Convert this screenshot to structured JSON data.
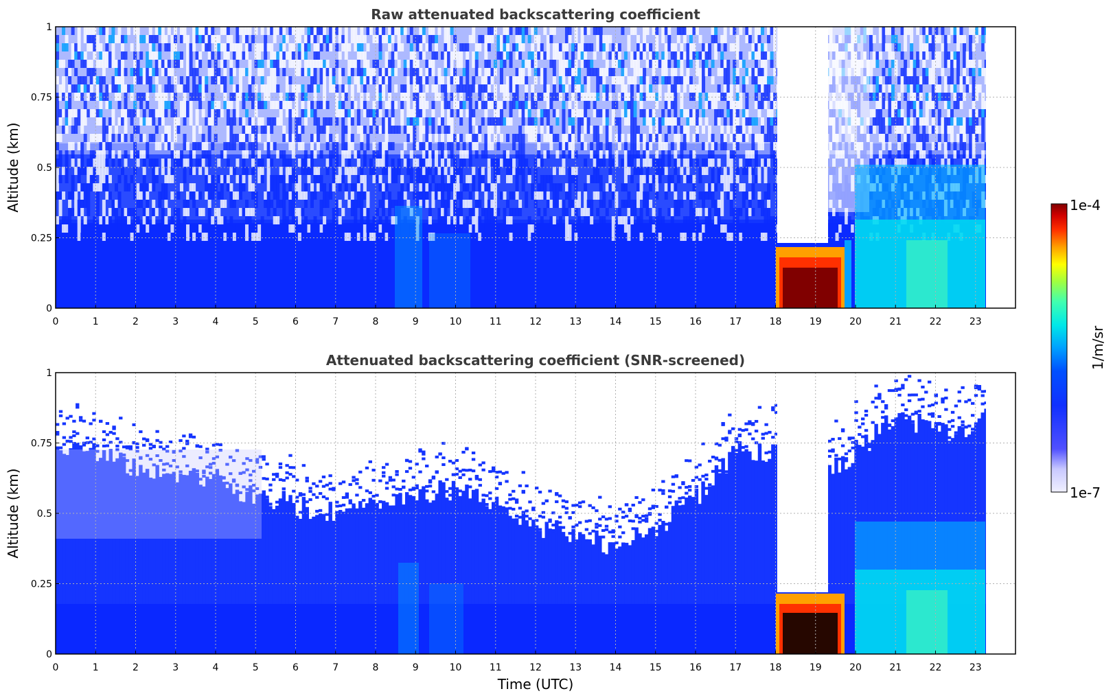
{
  "chart_data": [
    {
      "type": "heatmap",
      "title": "Raw attenuated backscattering coefficient",
      "xlabel": "",
      "ylabel": "Altitude (km)",
      "xlim": [
        0,
        24
      ],
      "ylim": [
        0,
        1
      ],
      "xticks": [
        "0",
        "1",
        "2",
        "3",
        "4",
        "5",
        "6",
        "7",
        "8",
        "9",
        "10",
        "11",
        "12",
        "13",
        "14",
        "15",
        "16",
        "17",
        "18",
        "19",
        "20",
        "21",
        "22",
        "23"
      ],
      "yticks": [
        "0",
        "0.25",
        "0.5",
        "0.75",
        "1"
      ],
      "grid": true,
      "data_end_hour": 23.3,
      "features": [
        {
          "hours": [
            18.0,
            19.7
          ],
          "altitude_km": [
            0.0,
            0.2
          ],
          "level": "high (~1e-4)"
        },
        {
          "hours": [
            18.0,
            19.2
          ],
          "altitude_km": [
            0.2,
            1.0
          ],
          "level": "none (blank)"
        },
        {
          "hours": [
            20.0,
            23.3
          ],
          "altitude_km": [
            0.0,
            0.35
          ],
          "level": "moderate (~1e-5)"
        }
      ]
    },
    {
      "type": "heatmap",
      "title": "Attenuated backscattering coefficient (SNR-screened)",
      "xlabel": "Time (UTC)",
      "ylabel": "Altitude (km)",
      "xlim": [
        0,
        24
      ],
      "ylim": [
        0,
        1
      ],
      "xticks": [
        "0",
        "1",
        "2",
        "3",
        "4",
        "5",
        "6",
        "7",
        "8",
        "9",
        "10",
        "11",
        "12",
        "13",
        "14",
        "15",
        "16",
        "17",
        "18",
        "19",
        "20",
        "21",
        "22",
        "23"
      ],
      "yticks": [
        "0",
        "0.25",
        "0.5",
        "0.75",
        "1"
      ],
      "grid": true,
      "data_end_hour": 23.3,
      "screening_top_km": [
        [
          0,
          0.75
        ],
        [
          1,
          0.72
        ],
        [
          2,
          0.66
        ],
        [
          3,
          0.64
        ],
        [
          4,
          0.62
        ],
        [
          5,
          0.56
        ],
        [
          6,
          0.52
        ],
        [
          7,
          0.5
        ],
        [
          8,
          0.52
        ],
        [
          9,
          0.56
        ],
        [
          10,
          0.58
        ],
        [
          11,
          0.54
        ],
        [
          12,
          0.46
        ],
        [
          13,
          0.42
        ],
        [
          14,
          0.38
        ],
        [
          15,
          0.45
        ],
        [
          16,
          0.55
        ],
        [
          17,
          0.72
        ],
        [
          18,
          0.72
        ],
        [
          19.2,
          0.62
        ],
        [
          20,
          0.72
        ],
        [
          21,
          0.84
        ],
        [
          22,
          0.8
        ],
        [
          23,
          0.78
        ],
        [
          23.3,
          0.92
        ]
      ]
    }
  ],
  "colorbar": {
    "label": "1/m/sr",
    "max_label": "1e-4",
    "min_label": "1e-7",
    "colors": [
      "#f0f0ff",
      "#c8c8ff",
      "#5050ff",
      "#1030ff",
      "#0050ff",
      "#00a0ff",
      "#00e8e8",
      "#40ffb0",
      "#a0ff40",
      "#ffff00",
      "#ffa000",
      "#ff3000",
      "#d00000",
      "#800000"
    ]
  }
}
